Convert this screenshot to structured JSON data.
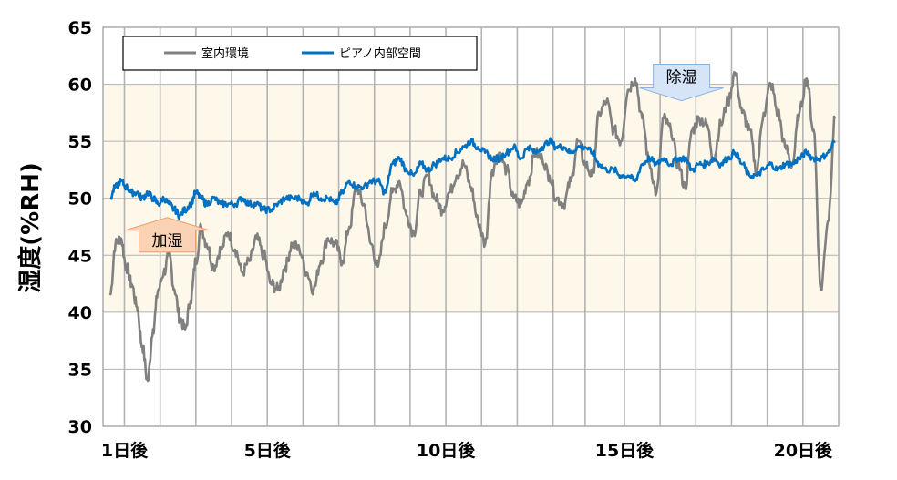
{
  "chart_data": {
    "type": "line",
    "title": "",
    "xlabel": "",
    "ylabel": "湿度(%RH)",
    "ylim": [
      30,
      65
    ],
    "yticks": [
      30,
      35,
      40,
      45,
      50,
      55,
      60,
      65
    ],
    "xlim": [
      0.4,
      21.0
    ],
    "xticks": [
      {
        "day": 1,
        "label": "1日後"
      },
      {
        "day": 5,
        "label": "5日後"
      },
      {
        "day": 10,
        "label": "10日後"
      },
      {
        "day": 15,
        "label": "15日後"
      },
      {
        "day": 20,
        "label": "20日後"
      }
    ],
    "vertical_grid_days": [
      1,
      2,
      3,
      4,
      5,
      6,
      7,
      8,
      9,
      10,
      11,
      12,
      13,
      13.9,
      15,
      16,
      17,
      18,
      19,
      20,
      21
    ],
    "target_band": [
      40,
      60
    ],
    "colors": {
      "band": "#fdf8ea",
      "indoor": "#808080",
      "piano": "#0070c0",
      "grid": "#b3b3b3"
    },
    "legend": {
      "placement": "top-left"
    },
    "series": [
      {
        "name": "室内環境",
        "x": [
          0.6,
          0.75,
          0.9,
          1.05,
          1.2,
          1.35,
          1.5,
          1.65,
          1.8,
          1.95,
          2.1,
          2.25,
          2.4,
          2.55,
          2.7,
          2.85,
          3.0,
          3.15,
          3.3,
          3.5,
          3.7,
          3.9,
          4.1,
          4.3,
          4.5,
          4.7,
          4.9,
          5.1,
          5.3,
          5.5,
          5.7,
          5.9,
          6.1,
          6.3,
          6.5,
          6.7,
          6.9,
          7.1,
          7.3,
          7.5,
          7.7,
          7.9,
          8.1,
          8.3,
          8.5,
          8.7,
          8.9,
          9.1,
          9.3,
          9.5,
          9.7,
          9.9,
          10.1,
          10.3,
          10.5,
          10.7,
          10.9,
          11.1,
          11.3,
          11.5,
          11.7,
          11.9,
          12.1,
          12.3,
          12.5,
          12.7,
          12.9,
          13.1,
          13.3,
          13.5,
          13.7,
          13.9,
          14.1,
          14.3,
          14.5,
          14.7,
          14.9,
          15.1,
          15.3,
          15.5,
          15.7,
          15.9,
          16.1,
          16.3,
          16.5,
          16.7,
          16.9,
          17.1,
          17.3,
          17.5,
          17.7,
          17.9,
          18.1,
          18.3,
          18.5,
          18.7,
          18.9,
          19.1,
          19.3,
          19.5,
          19.7,
          19.9,
          20.1,
          20.3,
          20.5,
          20.7,
          20.9
        ],
        "values": [
          41.5,
          46.0,
          46.5,
          44.0,
          42.5,
          40.5,
          37.0,
          34.0,
          38.5,
          42.0,
          43.5,
          45.0,
          42.0,
          39.5,
          38.5,
          41.0,
          44.5,
          47.5,
          46.0,
          44.0,
          45.5,
          47.0,
          45.5,
          43.5,
          44.5,
          46.5,
          45.0,
          42.5,
          42.0,
          44.0,
          46.0,
          45.5,
          43.5,
          42.0,
          44.5,
          46.5,
          46.0,
          44.5,
          47.5,
          51.0,
          49.5,
          46.0,
          44.0,
          47.5,
          50.5,
          51.5,
          48.5,
          47.0,
          50.5,
          52.0,
          50.0,
          49.0,
          50.5,
          52.0,
          53.0,
          51.0,
          48.0,
          46.0,
          52.5,
          54.0,
          52.5,
          50.0,
          49.5,
          51.5,
          54.0,
          53.5,
          52.0,
          50.0,
          49.5,
          51.5,
          55.0,
          53.0,
          52.0,
          57.5,
          58.5,
          56.0,
          55.0,
          59.5,
          60.5,
          57.0,
          53.0,
          50.5,
          57.0,
          56.0,
          53.0,
          51.0,
          56.0,
          57.0,
          56.5,
          53.5,
          56.5,
          58.5,
          61.0,
          57.5,
          56.0,
          52.5,
          57.5,
          60.0,
          57.5,
          54.5,
          53.0,
          57.5,
          60.5,
          56.0,
          42.0,
          48.0,
          57.0
        ]
      },
      {
        "name": "ピアノ内部空間",
        "x": [
          0.6,
          0.75,
          0.9,
          1.05,
          1.2,
          1.35,
          1.5,
          1.65,
          1.8,
          1.95,
          2.1,
          2.25,
          2.4,
          2.55,
          2.7,
          2.85,
          3.0,
          3.15,
          3.3,
          3.5,
          3.7,
          3.9,
          4.1,
          4.3,
          4.5,
          4.7,
          4.9,
          5.1,
          5.3,
          5.5,
          5.7,
          5.9,
          6.1,
          6.3,
          6.5,
          6.7,
          6.9,
          7.1,
          7.3,
          7.5,
          7.7,
          7.9,
          8.1,
          8.3,
          8.5,
          8.7,
          8.9,
          9.1,
          9.3,
          9.5,
          9.7,
          9.9,
          10.1,
          10.3,
          10.5,
          10.7,
          10.9,
          11.1,
          11.3,
          11.5,
          11.7,
          11.9,
          12.1,
          12.3,
          12.5,
          12.7,
          12.9,
          13.1,
          13.3,
          13.5,
          13.7,
          13.9,
          14.1,
          14.3,
          14.5,
          14.7,
          14.9,
          15.1,
          15.3,
          15.5,
          15.7,
          15.9,
          16.1,
          16.3,
          16.5,
          16.7,
          16.9,
          17.1,
          17.3,
          17.5,
          17.7,
          17.9,
          18.1,
          18.3,
          18.5,
          18.7,
          18.9,
          19.1,
          19.3,
          19.5,
          19.7,
          19.9,
          20.1,
          20.3,
          20.5,
          20.7,
          20.9
        ],
        "values": [
          50.0,
          51.0,
          51.5,
          51.0,
          50.5,
          50.5,
          50.0,
          50.5,
          50.0,
          49.5,
          50.0,
          49.5,
          49.0,
          48.5,
          49.0,
          49.5,
          50.5,
          50.0,
          49.5,
          50.0,
          49.5,
          49.5,
          49.5,
          50.0,
          49.5,
          49.5,
          49.0,
          49.0,
          49.5,
          50.0,
          50.0,
          50.0,
          49.5,
          50.5,
          50.0,
          50.0,
          49.5,
          50.5,
          51.5,
          51.0,
          51.0,
          51.5,
          51.5,
          50.5,
          53.0,
          53.5,
          52.5,
          52.0,
          53.0,
          52.5,
          53.0,
          53.5,
          53.5,
          54.0,
          54.5,
          55.0,
          54.5,
          54.0,
          53.5,
          53.5,
          54.0,
          54.5,
          53.5,
          54.5,
          54.0,
          54.5,
          55.0,
          54.5,
          54.5,
          54.0,
          54.5,
          54.5,
          54.0,
          53.0,
          52.5,
          52.5,
          52.0,
          52.0,
          51.5,
          53.0,
          53.5,
          53.0,
          53.5,
          53.0,
          53.5,
          53.5,
          52.5,
          53.0,
          53.0,
          53.5,
          53.0,
          53.5,
          54.0,
          53.0,
          52.0,
          52.0,
          52.5,
          53.0,
          52.5,
          53.0,
          53.0,
          53.5,
          54.0,
          53.5,
          53.5,
          54.0,
          55.0
        ]
      }
    ],
    "annotations": [
      {
        "text": "加湿",
        "direction": "up",
        "day": 2.2,
        "value": 47.2
      },
      {
        "text": "除湿",
        "direction": "down",
        "day": 16.6,
        "value": 60.8
      }
    ]
  }
}
